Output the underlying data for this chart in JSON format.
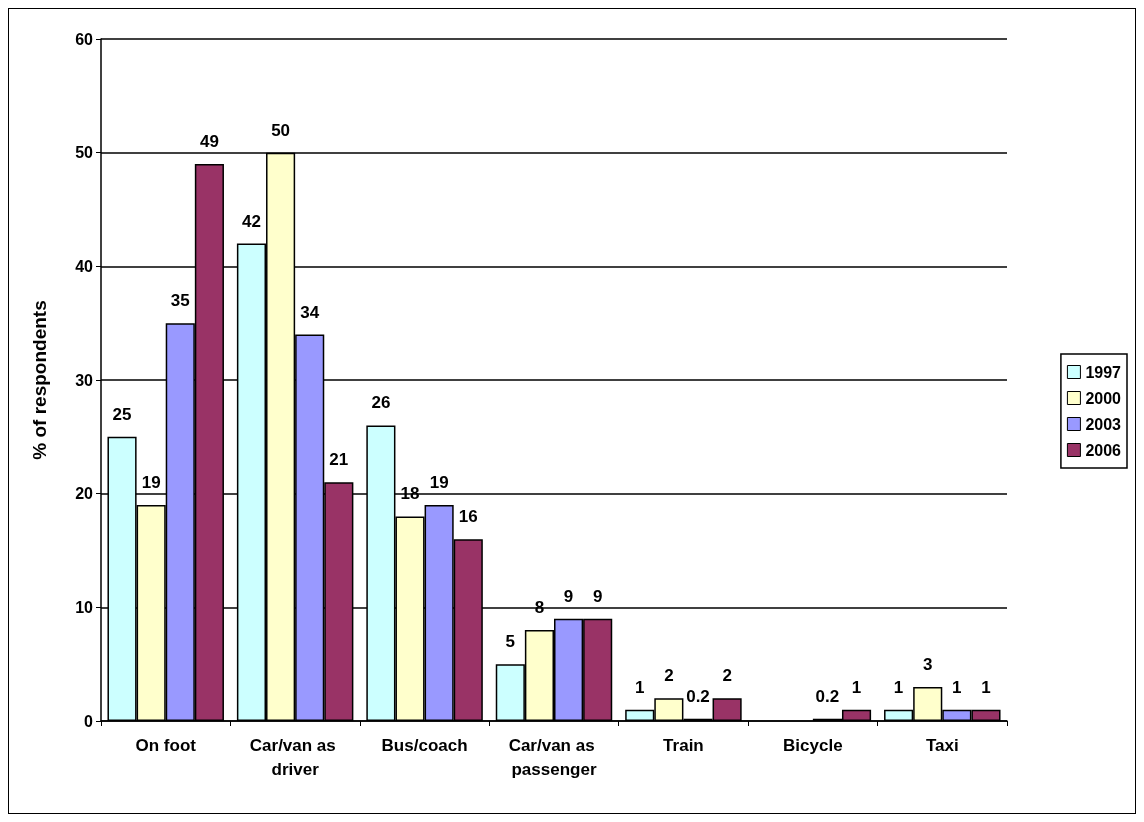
{
  "chart_data": {
    "type": "bar",
    "ylabel": "% of respondents",
    "categories": [
      "On foot",
      "Car/van as driver",
      "Bus/coach",
      "Car/van as passenger",
      "Train",
      "Bicycle",
      "Taxi"
    ],
    "series": [
      {
        "name": "1997",
        "color": "#ccffff",
        "values": [
          25,
          42,
          26,
          5,
          1,
          null,
          1
        ]
      },
      {
        "name": "2000",
        "color": "#ffffcc",
        "values": [
          19,
          50,
          18,
          8,
          2,
          null,
          3
        ]
      },
      {
        "name": "2003",
        "color": "#9999ff",
        "values": [
          35,
          34,
          19,
          9,
          0.2,
          0.2,
          1
        ]
      },
      {
        "name": "2006",
        "color": "#993366",
        "values": [
          49,
          21,
          16,
          9,
          2,
          1,
          1
        ]
      }
    ],
    "ylim": [
      0,
      60
    ],
    "yticks": [
      0,
      10,
      20,
      30,
      40,
      50,
      60
    ],
    "grid": "y",
    "legend": "right",
    "data_labels": true
  }
}
